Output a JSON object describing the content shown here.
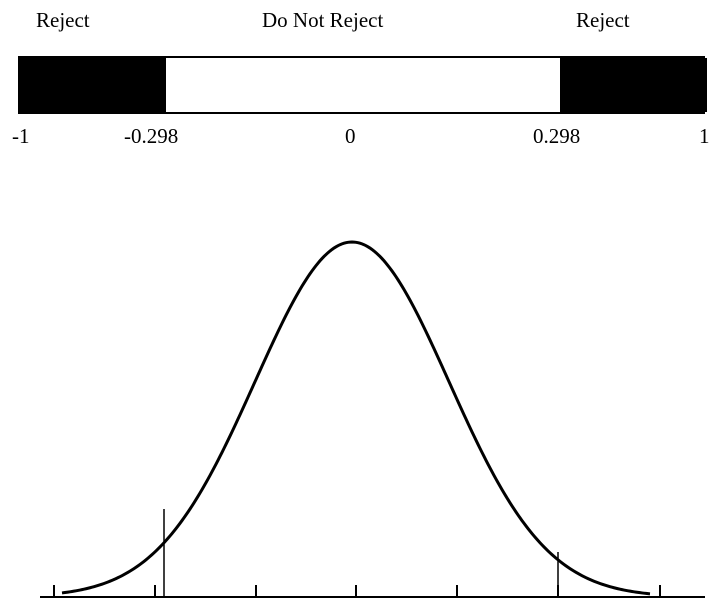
{
  "regions": {
    "left": "Reject",
    "middle": "Do Not Reject",
    "right": "Reject"
  },
  "scale": {
    "min_label": "-1",
    "lower_critical": "-0.298",
    "center": "0",
    "upper_critical": "0.298",
    "max_label": "1"
  },
  "colors": {
    "reject": "#000000",
    "do_not_reject": "#ffffff",
    "curve": "#000000"
  }
}
